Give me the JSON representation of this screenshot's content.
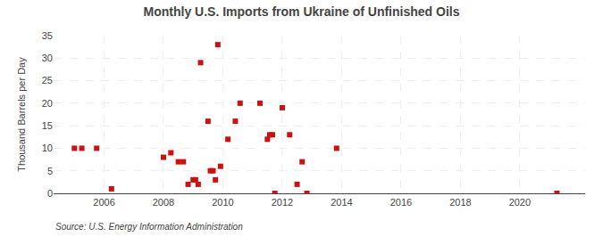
{
  "chart_data": {
    "type": "scatter",
    "title": "Monthly U.S. Imports from Ukraine of Unfinished Oils",
    "ylabel": "Thousand Barrels per Day",
    "annotations": [
      "Source: U.S. Energy Information Administration"
    ],
    "color": "#cc1111",
    "marker": "square",
    "grid": true,
    "xlim": [
      2004.3,
      2022.2
    ],
    "ylim": [
      0,
      35
    ],
    "xticks": [
      2006,
      2008,
      2010,
      2012,
      2014,
      2016,
      2018,
      2020
    ],
    "yticks": [
      0,
      5,
      10,
      15,
      20,
      25,
      30,
      35
    ],
    "x": [
      2005.0,
      2005.25,
      2005.75,
      2006.25,
      2008.0,
      2008.25,
      2008.5,
      2008.67,
      2008.83,
      2009.0,
      2009.08,
      2009.17,
      2009.25,
      2009.5,
      2009.58,
      2009.67,
      2009.75,
      2009.83,
      2009.92,
      2010.17,
      2010.42,
      2010.58,
      2011.25,
      2011.5,
      2011.58,
      2011.67,
      2011.75,
      2012.0,
      2012.25,
      2012.5,
      2012.67,
      2012.83,
      2013.83,
      2021.25
    ],
    "values": [
      10,
      10,
      10,
      1,
      8,
      9,
      7,
      7,
      2,
      3,
      3,
      2,
      29,
      16,
      5,
      5,
      3,
      33,
      6,
      12,
      16,
      20,
      20,
      12,
      13,
      13,
      0,
      19,
      13,
      2,
      7,
      0,
      10,
      0
    ]
  }
}
